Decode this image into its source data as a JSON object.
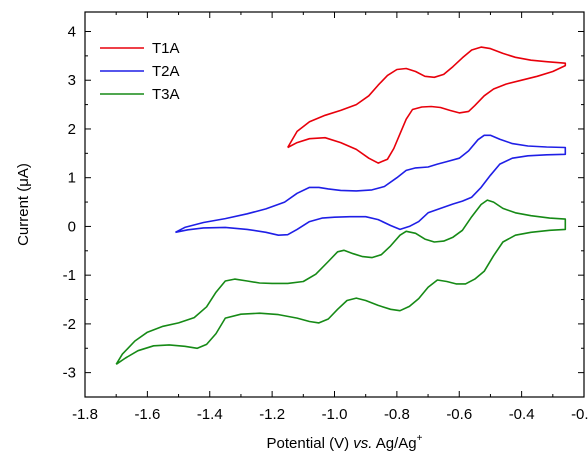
{
  "chart_data": {
    "type": "line",
    "title": "",
    "xlabel": {
      "main": "Potential (V) ",
      "italic": "vs.",
      "ref": " Ag/Ag",
      "sup": "+"
    },
    "ylabel": {
      "pre": "Current (",
      "unit": "μA",
      "post": ")"
    },
    "xlim": [
      -1.8,
      -0.2
    ],
    "ylim": [
      -3.5,
      4.4
    ],
    "xticks": [
      -1.8,
      -1.6,
      -1.4,
      -1.2,
      -1.0,
      -0.8,
      -0.6,
      -0.4,
      -0.2
    ],
    "yticks": [
      -3,
      -2,
      -1,
      0,
      1,
      2,
      3,
      4
    ],
    "xtick_labels": [
      "-1.8",
      "-1.6",
      "-1.4",
      "-1.2",
      "-1.0",
      "-0.8",
      "-0.6",
      "-0.4",
      "-0.2"
    ],
    "ytick_labels": [
      "-3",
      "-2",
      "-1",
      "0",
      "1",
      "2",
      "3",
      "4"
    ],
    "grid": false,
    "legend_position": "top-left",
    "series": [
      {
        "name": "T1A",
        "color": "#e8000b",
        "points": [
          [
            -1.15,
            1.62
          ],
          [
            -1.12,
            1.95
          ],
          [
            -1.08,
            2.15
          ],
          [
            -1.03,
            2.28
          ],
          [
            -0.98,
            2.38
          ],
          [
            -0.93,
            2.5
          ],
          [
            -0.89,
            2.68
          ],
          [
            -0.86,
            2.9
          ],
          [
            -0.83,
            3.1
          ],
          [
            -0.8,
            3.22
          ],
          [
            -0.77,
            3.24
          ],
          [
            -0.74,
            3.18
          ],
          [
            -0.71,
            3.08
          ],
          [
            -0.68,
            3.06
          ],
          [
            -0.65,
            3.12
          ],
          [
            -0.62,
            3.28
          ],
          [
            -0.59,
            3.46
          ],
          [
            -0.56,
            3.62
          ],
          [
            -0.53,
            3.68
          ],
          [
            -0.5,
            3.65
          ],
          [
            -0.46,
            3.55
          ],
          [
            -0.42,
            3.47
          ],
          [
            -0.37,
            3.41
          ],
          [
            -0.32,
            3.38
          ],
          [
            -0.26,
            3.35
          ],
          [
            -0.26,
            3.3
          ],
          [
            -0.3,
            3.18
          ],
          [
            -0.35,
            3.08
          ],
          [
            -0.4,
            3.0
          ],
          [
            -0.45,
            2.92
          ],
          [
            -0.49,
            2.82
          ],
          [
            -0.52,
            2.68
          ],
          [
            -0.55,
            2.48
          ],
          [
            -0.57,
            2.36
          ],
          [
            -0.6,
            2.33
          ],
          [
            -0.63,
            2.38
          ],
          [
            -0.66,
            2.44
          ],
          [
            -0.69,
            2.46
          ],
          [
            -0.72,
            2.45
          ],
          [
            -0.75,
            2.4
          ],
          [
            -0.77,
            2.2
          ],
          [
            -0.79,
            1.9
          ],
          [
            -0.81,
            1.6
          ],
          [
            -0.83,
            1.38
          ],
          [
            -0.86,
            1.3
          ],
          [
            -0.89,
            1.4
          ],
          [
            -0.93,
            1.58
          ],
          [
            -0.98,
            1.72
          ],
          [
            -1.03,
            1.82
          ],
          [
            -1.08,
            1.8
          ],
          [
            -1.12,
            1.72
          ],
          [
            -1.15,
            1.62
          ]
        ]
      },
      {
        "name": "T2A",
        "color": "#1f1fe6",
        "points": [
          [
            -1.51,
            -0.12
          ],
          [
            -1.48,
            -0.02
          ],
          [
            -1.42,
            0.08
          ],
          [
            -1.35,
            0.16
          ],
          [
            -1.28,
            0.26
          ],
          [
            -1.22,
            0.36
          ],
          [
            -1.16,
            0.5
          ],
          [
            -1.12,
            0.68
          ],
          [
            -1.08,
            0.8
          ],
          [
            -1.05,
            0.8
          ],
          [
            -1.02,
            0.77
          ],
          [
            -0.98,
            0.74
          ],
          [
            -0.93,
            0.73
          ],
          [
            -0.88,
            0.75
          ],
          [
            -0.84,
            0.82
          ],
          [
            -0.8,
            1.0
          ],
          [
            -0.77,
            1.15
          ],
          [
            -0.74,
            1.2
          ],
          [
            -0.7,
            1.22
          ],
          [
            -0.67,
            1.28
          ],
          [
            -0.64,
            1.33
          ],
          [
            -0.6,
            1.4
          ],
          [
            -0.57,
            1.55
          ],
          [
            -0.54,
            1.78
          ],
          [
            -0.52,
            1.87
          ],
          [
            -0.5,
            1.87
          ],
          [
            -0.47,
            1.79
          ],
          [
            -0.43,
            1.7
          ],
          [
            -0.38,
            1.65
          ],
          [
            -0.32,
            1.63
          ],
          [
            -0.26,
            1.62
          ],
          [
            -0.26,
            1.48
          ],
          [
            -0.32,
            1.47
          ],
          [
            -0.38,
            1.45
          ],
          [
            -0.43,
            1.4
          ],
          [
            -0.47,
            1.28
          ],
          [
            -0.5,
            1.05
          ],
          [
            -0.53,
            0.8
          ],
          [
            -0.56,
            0.6
          ],
          [
            -0.59,
            0.52
          ],
          [
            -0.62,
            0.46
          ],
          [
            -0.66,
            0.37
          ],
          [
            -0.7,
            0.28
          ],
          [
            -0.73,
            0.1
          ],
          [
            -0.76,
            0.0
          ],
          [
            -0.79,
            -0.06
          ],
          [
            -0.82,
            0.02
          ],
          [
            -0.86,
            0.14
          ],
          [
            -0.9,
            0.2
          ],
          [
            -0.95,
            0.2
          ],
          [
            -1.0,
            0.19
          ],
          [
            -1.04,
            0.17
          ],
          [
            -1.08,
            0.1
          ],
          [
            -1.12,
            -0.06
          ],
          [
            -1.15,
            -0.17
          ],
          [
            -1.18,
            -0.18
          ],
          [
            -1.22,
            -0.12
          ],
          [
            -1.28,
            -0.06
          ],
          [
            -1.35,
            -0.02
          ],
          [
            -1.42,
            -0.03
          ],
          [
            -1.47,
            -0.07
          ],
          [
            -1.51,
            -0.12
          ]
        ]
      },
      {
        "name": "T3A",
        "color": "#168a16",
        "points": [
          [
            -1.7,
            -2.83
          ],
          [
            -1.68,
            -2.62
          ],
          [
            -1.64,
            -2.35
          ],
          [
            -1.6,
            -2.17
          ],
          [
            -1.55,
            -2.05
          ],
          [
            -1.5,
            -1.98
          ],
          [
            -1.45,
            -1.87
          ],
          [
            -1.41,
            -1.65
          ],
          [
            -1.38,
            -1.35
          ],
          [
            -1.35,
            -1.12
          ],
          [
            -1.32,
            -1.08
          ],
          [
            -1.28,
            -1.12
          ],
          [
            -1.24,
            -1.16
          ],
          [
            -1.2,
            -1.17
          ],
          [
            -1.15,
            -1.17
          ],
          [
            -1.1,
            -1.13
          ],
          [
            -1.06,
            -0.98
          ],
          [
            -1.02,
            -0.72
          ],
          [
            -0.99,
            -0.52
          ],
          [
            -0.97,
            -0.49
          ],
          [
            -0.94,
            -0.56
          ],
          [
            -0.91,
            -0.62
          ],
          [
            -0.88,
            -0.64
          ],
          [
            -0.85,
            -0.58
          ],
          [
            -0.82,
            -0.4
          ],
          [
            -0.79,
            -0.18
          ],
          [
            -0.77,
            -0.1
          ],
          [
            -0.74,
            -0.14
          ],
          [
            -0.71,
            -0.26
          ],
          [
            -0.68,
            -0.32
          ],
          [
            -0.65,
            -0.3
          ],
          [
            -0.62,
            -0.22
          ],
          [
            -0.59,
            -0.08
          ],
          [
            -0.56,
            0.2
          ],
          [
            -0.53,
            0.45
          ],
          [
            -0.51,
            0.54
          ],
          [
            -0.49,
            0.5
          ],
          [
            -0.46,
            0.37
          ],
          [
            -0.42,
            0.28
          ],
          [
            -0.37,
            0.22
          ],
          [
            -0.31,
            0.17
          ],
          [
            -0.26,
            0.15
          ],
          [
            -0.26,
            -0.06
          ],
          [
            -0.31,
            -0.08
          ],
          [
            -0.37,
            -0.12
          ],
          [
            -0.42,
            -0.18
          ],
          [
            -0.46,
            -0.32
          ],
          [
            -0.49,
            -0.6
          ],
          [
            -0.52,
            -0.92
          ],
          [
            -0.55,
            -1.08
          ],
          [
            -0.58,
            -1.18
          ],
          [
            -0.61,
            -1.18
          ],
          [
            -0.64,
            -1.13
          ],
          [
            -0.67,
            -1.1
          ],
          [
            -0.7,
            -1.25
          ],
          [
            -0.73,
            -1.48
          ],
          [
            -0.76,
            -1.64
          ],
          [
            -0.79,
            -1.73
          ],
          [
            -0.82,
            -1.7
          ],
          [
            -0.86,
            -1.62
          ],
          [
            -0.9,
            -1.52
          ],
          [
            -0.93,
            -1.47
          ],
          [
            -0.96,
            -1.52
          ],
          [
            -0.99,
            -1.7
          ],
          [
            -1.02,
            -1.9
          ],
          [
            -1.05,
            -1.98
          ],
          [
            -1.08,
            -1.95
          ],
          [
            -1.12,
            -1.88
          ],
          [
            -1.18,
            -1.81
          ],
          [
            -1.24,
            -1.78
          ],
          [
            -1.3,
            -1.8
          ],
          [
            -1.35,
            -1.88
          ],
          [
            -1.38,
            -2.2
          ],
          [
            -1.41,
            -2.42
          ],
          [
            -1.44,
            -2.5
          ],
          [
            -1.48,
            -2.46
          ],
          [
            -1.53,
            -2.43
          ],
          [
            -1.58,
            -2.45
          ],
          [
            -1.63,
            -2.55
          ],
          [
            -1.67,
            -2.7
          ],
          [
            -1.7,
            -2.83
          ]
        ]
      }
    ]
  }
}
